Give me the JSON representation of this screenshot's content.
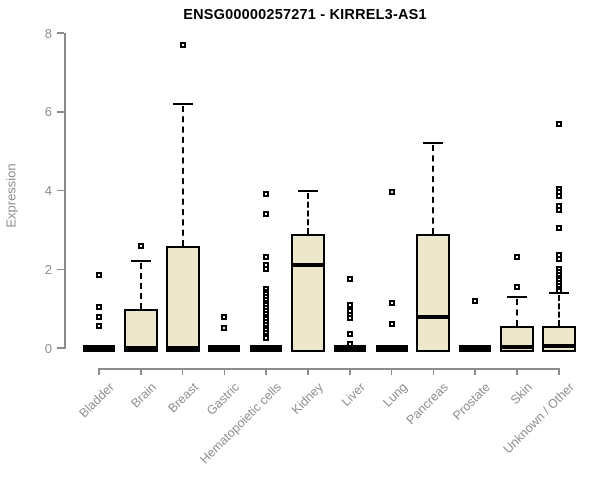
{
  "title": "ENSG00000257271 - KIRREL3-AS1",
  "colors": {
    "box_fill": "#ede8cc",
    "box_border": "#000000",
    "median": "#000000",
    "axis": "#8c8c8c",
    "tick_label": "#8e8e8e",
    "background": "#ffffff"
  },
  "chart_data": {
    "type": "boxplot",
    "title": "ENSG00000257271 - KIRREL3-AS1",
    "xlabel": "",
    "ylabel": "Expression",
    "ylim": [
      0,
      8
    ],
    "yticks": [
      0,
      2,
      4,
      6,
      8
    ],
    "grid": false,
    "legend": false,
    "categories": [
      "Bladder",
      "Brain",
      "Breast",
      "Gastric",
      "Hematopoietic cells",
      "Kidney",
      "Liver",
      "Lung",
      "Pancreas",
      "Prostate",
      "Skin",
      "Unknown / Other"
    ],
    "series": [
      {
        "name": "Bladder",
        "q1": 0,
        "median": 0,
        "q3": 0,
        "whisker_low": 0,
        "whisker_high": 0,
        "outliers": [
          1.85,
          1.05,
          0.8,
          0.55
        ]
      },
      {
        "name": "Brain",
        "q1": 0,
        "median": 0,
        "q3": 1.0,
        "whisker_low": 0,
        "whisker_high": 2.2,
        "outliers": [
          2.6
        ]
      },
      {
        "name": "Breast",
        "q1": 0,
        "median": 0,
        "q3": 2.6,
        "whisker_low": 0,
        "whisker_high": 6.2,
        "outliers": [
          7.7
        ]
      },
      {
        "name": "Gastric",
        "q1": 0,
        "median": 0,
        "q3": 0,
        "whisker_low": 0,
        "whisker_high": 0,
        "outliers": [
          0.8,
          0.5
        ]
      },
      {
        "name": "Hematopoietic cells",
        "q1": 0,
        "median": 0,
        "q3": 0,
        "whisker_low": 0,
        "whisker_high": 0,
        "outliers": [
          3.9,
          3.4,
          2.3,
          2.1,
          2.0,
          1.5,
          1.43,
          1.36,
          1.29,
          1.22,
          1.15,
          1.08,
          1.01,
          0.94,
          0.87,
          0.8,
          0.73,
          0.66,
          0.59,
          0.52,
          0.45,
          0.38,
          0.31,
          0.25
        ]
      },
      {
        "name": "Kidney",
        "q1": 0,
        "median": 2.1,
        "q3": 2.9,
        "whisker_low": 0,
        "whisker_high": 4.0,
        "outliers": []
      },
      {
        "name": "Liver",
        "q1": 0,
        "median": 0,
        "q3": 0,
        "whisker_low": 0,
        "whisker_high": 0,
        "outliers": [
          1.75,
          1.1,
          0.95,
          0.85,
          0.75,
          0.35,
          0.1
        ]
      },
      {
        "name": "Lung",
        "q1": 0,
        "median": 0,
        "q3": 0,
        "whisker_low": 0,
        "whisker_high": 0,
        "outliers": [
          3.95,
          1.15,
          0.6
        ]
      },
      {
        "name": "Pancreas",
        "q1": 0,
        "median": 0.8,
        "q3": 2.9,
        "whisker_low": 0,
        "whisker_high": 5.2,
        "outliers": []
      },
      {
        "name": "Prostate",
        "q1": 0,
        "median": 0,
        "q3": 0,
        "whisker_low": 0,
        "whisker_high": 0,
        "outliers": [
          1.2
        ]
      },
      {
        "name": "Skin",
        "q1": 0,
        "median": 0.02,
        "q3": 0.55,
        "whisker_low": 0,
        "whisker_high": 1.3,
        "outliers": [
          2.3,
          1.55
        ]
      },
      {
        "name": "Unknown / Other",
        "q1": 0,
        "median": 0.05,
        "q3": 0.55,
        "whisker_low": 0,
        "whisker_high": 1.4,
        "outliers": [
          5.7,
          4.05,
          3.95,
          3.85,
          3.6,
          3.5,
          3.05,
          2.35,
          2.25,
          2.0,
          1.93,
          1.86,
          1.79,
          1.72,
          1.65,
          1.58,
          1.51,
          1.45
        ]
      }
    ]
  }
}
